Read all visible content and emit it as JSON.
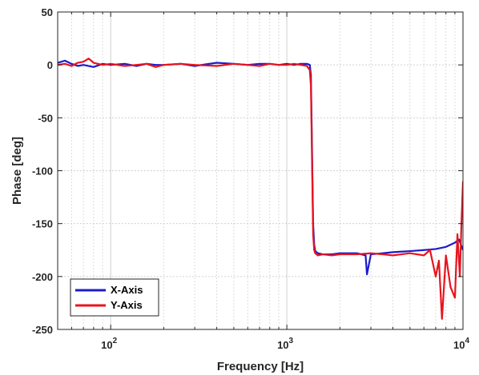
{
  "chart_data": {
    "type": "line",
    "xlabel": "Frequency [Hz]",
    "ylabel": "Phase [deg]",
    "xscale": "log",
    "xlim": [
      50,
      10000
    ],
    "ylim": [
      -250,
      50
    ],
    "yticks": [
      50,
      0,
      -50,
      -100,
      -150,
      -200,
      -250
    ],
    "yticklabels": [
      "50",
      "0",
      "-50",
      "-100",
      "-150",
      "-200",
      "-250"
    ],
    "xticks": [
      100,
      1000,
      10000
    ],
    "xticklabels": [
      {
        "base": "10",
        "exp": "2"
      },
      {
        "base": "10",
        "exp": "3"
      },
      {
        "base": "10",
        "exp": "4"
      }
    ],
    "grid": true,
    "legend_position": "bottom-left",
    "series": [
      {
        "name": "X-Axis",
        "color": "#1c1cc8",
        "x": [
          50,
          55,
          60,
          65,
          70,
          80,
          90,
          100,
          120,
          140,
          160,
          180,
          200,
          250,
          300,
          400,
          500,
          600,
          700,
          800,
          900,
          1000,
          1100,
          1200,
          1300,
          1350,
          1370,
          1390,
          1410,
          1430,
          1450,
          1500,
          1600,
          1800,
          2000,
          2500,
          2800,
          2850,
          3000,
          3500,
          4000,
          5000,
          6000,
          7000,
          8000,
          9000,
          9500,
          10000
        ],
        "y": [
          2,
          4,
          1,
          -1,
          0,
          -2,
          1,
          0,
          1,
          -1,
          1,
          0,
          0,
          1,
          -1,
          2,
          1,
          0,
          1,
          1,
          0,
          1,
          0,
          1,
          1,
          0,
          -10,
          -80,
          -150,
          -170,
          -176,
          -178,
          -179,
          -179,
          -178,
          -178,
          -180,
          -198,
          -179,
          -178,
          -177,
          -176,
          -175,
          -174,
          -172,
          -168,
          -165,
          -175
        ]
      },
      {
        "name": "Y-Axis",
        "color": "#e8141e",
        "x": [
          50,
          55,
          60,
          65,
          70,
          75,
          80,
          90,
          100,
          120,
          140,
          160,
          180,
          200,
          250,
          300,
          400,
          500,
          600,
          700,
          800,
          900,
          1000,
          1100,
          1200,
          1300,
          1350,
          1370,
          1390,
          1410,
          1430,
          1450,
          1500,
          1600,
          1800,
          2000,
          2500,
          3000,
          3500,
          4000,
          5000,
          6000,
          6500,
          7000,
          7300,
          7600,
          8000,
          8500,
          9000,
          9300,
          9600,
          9800,
          10000
        ],
        "y": [
          0,
          1,
          -1,
          2,
          3,
          6,
          2,
          0,
          1,
          -1,
          0,
          1,
          -2,
          0,
          1,
          0,
          -1,
          1,
          0,
          -1,
          1,
          0,
          0,
          1,
          0,
          -1,
          -5,
          -20,
          -90,
          -160,
          -175,
          -178,
          -180,
          -179,
          -180,
          -179,
          -179,
          -178,
          -179,
          -180,
          -178,
          -180,
          -175,
          -200,
          -185,
          -240,
          -180,
          -210,
          -220,
          -160,
          -200,
          -150,
          -110
        ]
      }
    ]
  }
}
